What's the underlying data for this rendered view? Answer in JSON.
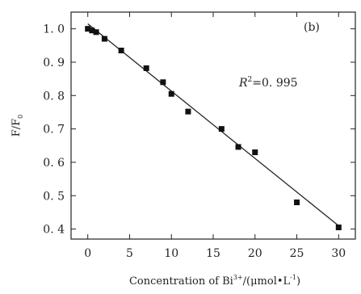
{
  "chart_data": {
    "type": "scatter",
    "panel_label": "(b)",
    "xlabel": "Concentration of Bi",
    "xlabel_sup": "3+",
    "xlabel_unit_pre": "/(μmol•L",
    "xlabel_unit_sup": "-1",
    "xlabel_unit_post": ")",
    "ylabel": "F/F",
    "ylabel_sub": "0",
    "annotation_r": "R",
    "annotation_sup": "2",
    "annotation_value": "=0. 995",
    "xlim": [
      -2,
      32
    ],
    "ylim": [
      0.37,
      1.05
    ],
    "xticks": [
      0,
      5,
      10,
      15,
      20,
      25,
      30
    ],
    "xtick_labels": [
      "0",
      "5",
      "10",
      "15",
      "20",
      "25",
      "30"
    ],
    "yticks": [
      0.4,
      0.5,
      0.6,
      0.7,
      0.8,
      0.9,
      1.0
    ],
    "ytick_labels": [
      "0. 4",
      "0. 5",
      "0. 6",
      "0. 7",
      "0. 8",
      "0. 9",
      "1. 0"
    ],
    "points": [
      {
        "x": 0,
        "y": 1.0
      },
      {
        "x": 0.5,
        "y": 0.995
      },
      {
        "x": 1,
        "y": 0.99
      },
      {
        "x": 2,
        "y": 0.97
      },
      {
        "x": 4,
        "y": 0.935
      },
      {
        "x": 7,
        "y": 0.882
      },
      {
        "x": 9,
        "y": 0.84
      },
      {
        "x": 10,
        "y": 0.805
      },
      {
        "x": 12,
        "y": 0.752
      },
      {
        "x": 16,
        "y": 0.7
      },
      {
        "x": 18,
        "y": 0.646
      },
      {
        "x": 20,
        "y": 0.63
      },
      {
        "x": 25,
        "y": 0.48
      },
      {
        "x": 30,
        "y": 0.405
      }
    ],
    "fit_line": {
      "x": [
        0,
        30
      ],
      "y": [
        1.015,
        0.41
      ]
    }
  }
}
